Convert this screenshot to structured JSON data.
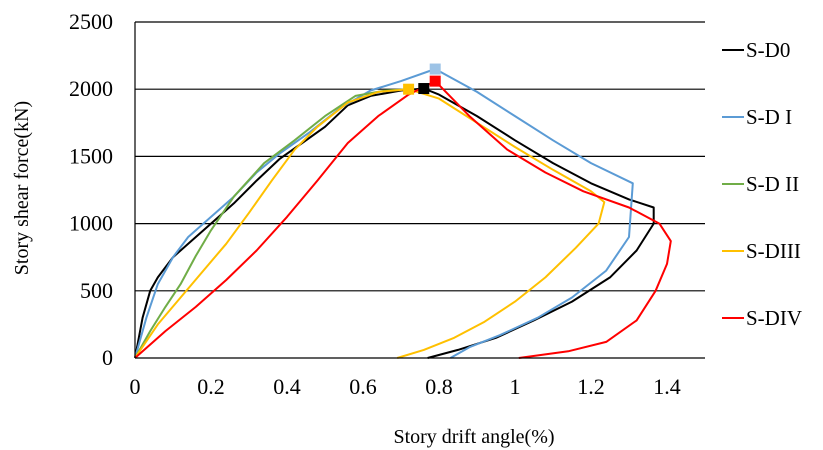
{
  "chart_data": {
    "type": "line",
    "title": "",
    "xlabel": "Story drift angle(%)",
    "ylabel": "Story shear force(kN)",
    "xlim": [
      0,
      1.5
    ],
    "ylim": [
      0,
      2500
    ],
    "x_ticks": [
      "0",
      "0.2",
      "0.4",
      "0.6",
      "0.8",
      "1",
      "1.2",
      "1.4"
    ],
    "y_ticks": [
      "0",
      "500",
      "1000",
      "1500",
      "2000",
      "2500"
    ],
    "grid": "horizontal",
    "legend_position": "right",
    "series": [
      {
        "name": "S-D0",
        "color": "#000000",
        "peak": [
          0.76,
          2005
        ],
        "points": [
          [
            0,
            0
          ],
          [
            0.02,
            300
          ],
          [
            0.04,
            500
          ],
          [
            0.06,
            600
          ],
          [
            0.1,
            750
          ],
          [
            0.14,
            850
          ],
          [
            0.2,
            1000
          ],
          [
            0.26,
            1150
          ],
          [
            0.32,
            1320
          ],
          [
            0.38,
            1480
          ],
          [
            0.44,
            1600
          ],
          [
            0.5,
            1720
          ],
          [
            0.56,
            1880
          ],
          [
            0.62,
            1950
          ],
          [
            0.7,
            1990
          ],
          [
            0.76,
            2005
          ],
          [
            0.8,
            1960
          ],
          [
            0.9,
            1800
          ],
          [
            1.0,
            1620
          ],
          [
            1.1,
            1450
          ],
          [
            1.2,
            1300
          ],
          [
            1.3,
            1180
          ],
          [
            1.365,
            1120
          ],
          [
            1.365,
            1000
          ],
          [
            1.32,
            800
          ],
          [
            1.25,
            600
          ],
          [
            1.15,
            420
          ],
          [
            1.05,
            280
          ],
          [
            0.95,
            150
          ],
          [
            0.85,
            60
          ],
          [
            0.77,
            0
          ]
        ]
      },
      {
        "name": "S-D I",
        "color": "#5b9bd5",
        "peak": [
          0.79,
          2150
        ],
        "points": [
          [
            0,
            0
          ],
          [
            0.03,
            300
          ],
          [
            0.06,
            550
          ],
          [
            0.1,
            750
          ],
          [
            0.14,
            900
          ],
          [
            0.2,
            1050
          ],
          [
            0.26,
            1200
          ],
          [
            0.32,
            1380
          ],
          [
            0.38,
            1520
          ],
          [
            0.46,
            1680
          ],
          [
            0.54,
            1860
          ],
          [
            0.62,
            1990
          ],
          [
            0.7,
            2060
          ],
          [
            0.79,
            2150
          ],
          [
            0.9,
            1980
          ],
          [
            1.0,
            1800
          ],
          [
            1.1,
            1620
          ],
          [
            1.2,
            1450
          ],
          [
            1.31,
            1300
          ],
          [
            1.3,
            900
          ],
          [
            1.24,
            650
          ],
          [
            1.15,
            450
          ],
          [
            1.06,
            300
          ],
          [
            0.96,
            170
          ],
          [
            0.88,
            80
          ],
          [
            0.83,
            0
          ]
        ]
      },
      {
        "name": "S-D II",
        "color": "#70ad47",
        "peak": [
          0.72,
          2000
        ],
        "points": [
          [
            0,
            0
          ],
          [
            0.04,
            200
          ],
          [
            0.08,
            380
          ],
          [
            0.12,
            550
          ],
          [
            0.16,
            760
          ],
          [
            0.2,
            950
          ],
          [
            0.26,
            1200
          ],
          [
            0.34,
            1450
          ],
          [
            0.42,
            1620
          ],
          [
            0.5,
            1800
          ],
          [
            0.58,
            1950
          ],
          [
            0.66,
            1990
          ],
          [
            0.72,
            2000
          ]
        ]
      },
      {
        "name": "S-DIII",
        "color": "#ffc000",
        "peak": [
          0.72,
          2000
        ],
        "points": [
          [
            0,
            0
          ],
          [
            0.06,
            250
          ],
          [
            0.12,
            450
          ],
          [
            0.18,
            650
          ],
          [
            0.24,
            850
          ],
          [
            0.3,
            1080
          ],
          [
            0.36,
            1320
          ],
          [
            0.42,
            1550
          ],
          [
            0.48,
            1720
          ],
          [
            0.56,
            1900
          ],
          [
            0.64,
            1980
          ],
          [
            0.72,
            2000
          ],
          [
            0.8,
            1930
          ],
          [
            0.9,
            1750
          ],
          [
            1.0,
            1570
          ],
          [
            1.1,
            1400
          ],
          [
            1.2,
            1240
          ],
          [
            1.235,
            1160
          ],
          [
            1.22,
            1000
          ],
          [
            1.16,
            820
          ],
          [
            1.08,
            600
          ],
          [
            1.0,
            420
          ],
          [
            0.92,
            270
          ],
          [
            0.84,
            150
          ],
          [
            0.76,
            60
          ],
          [
            0.69,
            0
          ]
        ]
      },
      {
        "name": "S-DIV",
        "color": "#ff0000",
        "peak": [
          0.79,
          2060
        ],
        "points": [
          [
            0,
            0
          ],
          [
            0.08,
            200
          ],
          [
            0.16,
            380
          ],
          [
            0.24,
            580
          ],
          [
            0.32,
            800
          ],
          [
            0.4,
            1050
          ],
          [
            0.48,
            1320
          ],
          [
            0.56,
            1600
          ],
          [
            0.64,
            1800
          ],
          [
            0.72,
            1960
          ],
          [
            0.79,
            2060
          ],
          [
            0.88,
            1800
          ],
          [
            0.98,
            1550
          ],
          [
            1.08,
            1380
          ],
          [
            1.18,
            1240
          ],
          [
            1.3,
            1120
          ],
          [
            1.38,
            1000
          ],
          [
            1.41,
            870
          ],
          [
            1.4,
            700
          ],
          [
            1.37,
            500
          ],
          [
            1.32,
            280
          ],
          [
            1.24,
            120
          ],
          [
            1.14,
            50
          ],
          [
            1.01,
            0
          ]
        ]
      }
    ]
  }
}
